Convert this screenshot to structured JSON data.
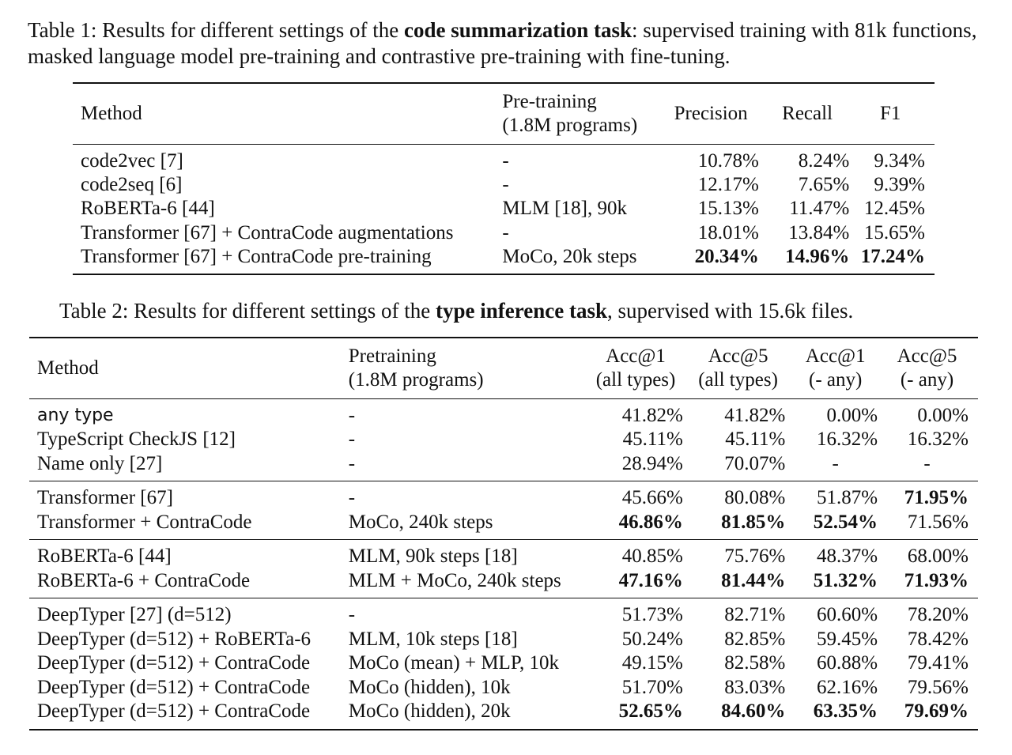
{
  "table1": {
    "caption": {
      "pre": "Table 1: Results for different settings of the ",
      "bold": "code summarization task",
      "post": ": supervised training with 81k functions, masked language model pre-training and contrastive pre-training with fine-tuning."
    },
    "headers": {
      "method": "Method",
      "pretraining_l1": "Pre-training",
      "pretraining_l2": "(1.8M programs)",
      "precision": "Precision",
      "recall": "Recall",
      "f1": "F1"
    },
    "rows": [
      {
        "method": "code2vec [7]",
        "pretraining": "-",
        "precision": "10.78%",
        "recall": "8.24%",
        "f1": "9.34%"
      },
      {
        "method": "code2seq [6]",
        "pretraining": "-",
        "precision": "12.17%",
        "recall": "7.65%",
        "f1": "9.39%"
      },
      {
        "method": "RoBERTa-6 [44]",
        "pretraining": "MLM [18], 90k",
        "precision": "15.13%",
        "recall": "11.47%",
        "f1": "12.45%"
      },
      {
        "method": "Transformer [67] + ContraCode augmentations",
        "pretraining": "-",
        "precision": "18.01%",
        "recall": "13.84%",
        "f1": "15.65%"
      },
      {
        "method": "Transformer [67] + ContraCode pre-training",
        "pretraining": "MoCo, 20k steps",
        "precision": "20.34%",
        "recall": "14.96%",
        "f1": "17.24%"
      }
    ]
  },
  "table2": {
    "caption": {
      "pre": "Table 2: Results for different settings of the ",
      "bold": "type inference task",
      "post": ", supervised with 15.6k files."
    },
    "headers": {
      "method": "Method",
      "pretraining_l1": "Pretraining",
      "pretraining_l2": "(1.8M programs)",
      "acc1_all_l1": "Acc@1",
      "acc1_all_l2": "(all types)",
      "acc5_all_l1": "Acc@5",
      "acc5_all_l2": "(all types)",
      "acc1_any_l1": "Acc@1",
      "acc1_any_l2": "(- any)",
      "acc5_any_l1": "Acc@5",
      "acc5_any_l2": "(- any)"
    },
    "groups": [
      [
        {
          "method": "any type",
          "pretraining": "-",
          "acc1_all": "41.82%",
          "acc5_all": "41.82%",
          "acc1_any": "0.00%",
          "acc5_any": "0.00%"
        },
        {
          "method": "TypeScript CheckJS [12]",
          "pretraining": "-",
          "acc1_all": "45.11%",
          "acc5_all": "45.11%",
          "acc1_any": "16.32%",
          "acc5_any": "16.32%"
        },
        {
          "method": "Name only [27]",
          "pretraining": "-",
          "acc1_all": "28.94%",
          "acc5_all": "70.07%",
          "acc1_any": "-",
          "acc5_any": "-"
        }
      ],
      [
        {
          "method": "Transformer [67]",
          "pretraining": "-",
          "acc1_all": "45.66%",
          "acc5_all": "80.08%",
          "acc1_any": "51.87%",
          "acc5_any": "71.95%"
        },
        {
          "method": "Transformer + ContraCode",
          "pretraining": "MoCo, 240k steps",
          "acc1_all": "46.86%",
          "acc5_all": "81.85%",
          "acc1_any": "52.54%",
          "acc5_any": "71.56%"
        }
      ],
      [
        {
          "method": "RoBERTa-6 [44]",
          "pretraining": "MLM, 90k steps [18]",
          "acc1_all": "40.85%",
          "acc5_all": "75.76%",
          "acc1_any": "48.37%",
          "acc5_any": "68.00%"
        },
        {
          "method": "RoBERTa-6 + ContraCode",
          "pretraining": "MLM + MoCo, 240k steps",
          "acc1_all": "47.16%",
          "acc5_all": "81.44%",
          "acc1_any": "51.32%",
          "acc5_any": "71.93%"
        }
      ],
      [
        {
          "method": "DeepTyper [27] (d=512)",
          "pretraining": "-",
          "acc1_all": "51.73%",
          "acc5_all": "82.71%",
          "acc1_any": "60.60%",
          "acc5_any": "78.20%"
        },
        {
          "method": "DeepTyper (d=512) + RoBERTa-6",
          "pretraining": "MLM, 10k steps [18]",
          "acc1_all": "50.24%",
          "acc5_all": "82.85%",
          "acc1_any": "59.45%",
          "acc5_any": "78.42%"
        },
        {
          "method": "DeepTyper (d=512) + ContraCode",
          "pretraining": "MoCo (mean) + MLP, 10k",
          "acc1_all": "49.15%",
          "acc5_all": "82.58%",
          "acc1_any": "60.88%",
          "acc5_any": "79.41%"
        },
        {
          "method": "DeepTyper (d=512) + ContraCode",
          "pretraining": "MoCo (hidden), 10k",
          "acc1_all": "51.70%",
          "acc5_all": "83.03%",
          "acc1_any": "62.16%",
          "acc5_any": "79.56%"
        },
        {
          "method": "DeepTyper (d=512) + ContraCode",
          "pretraining": "MoCo (hidden), 20k",
          "acc1_all": "52.65%",
          "acc5_all": "84.60%",
          "acc1_any": "63.35%",
          "acc5_any": "79.69%"
        }
      ]
    ]
  }
}
